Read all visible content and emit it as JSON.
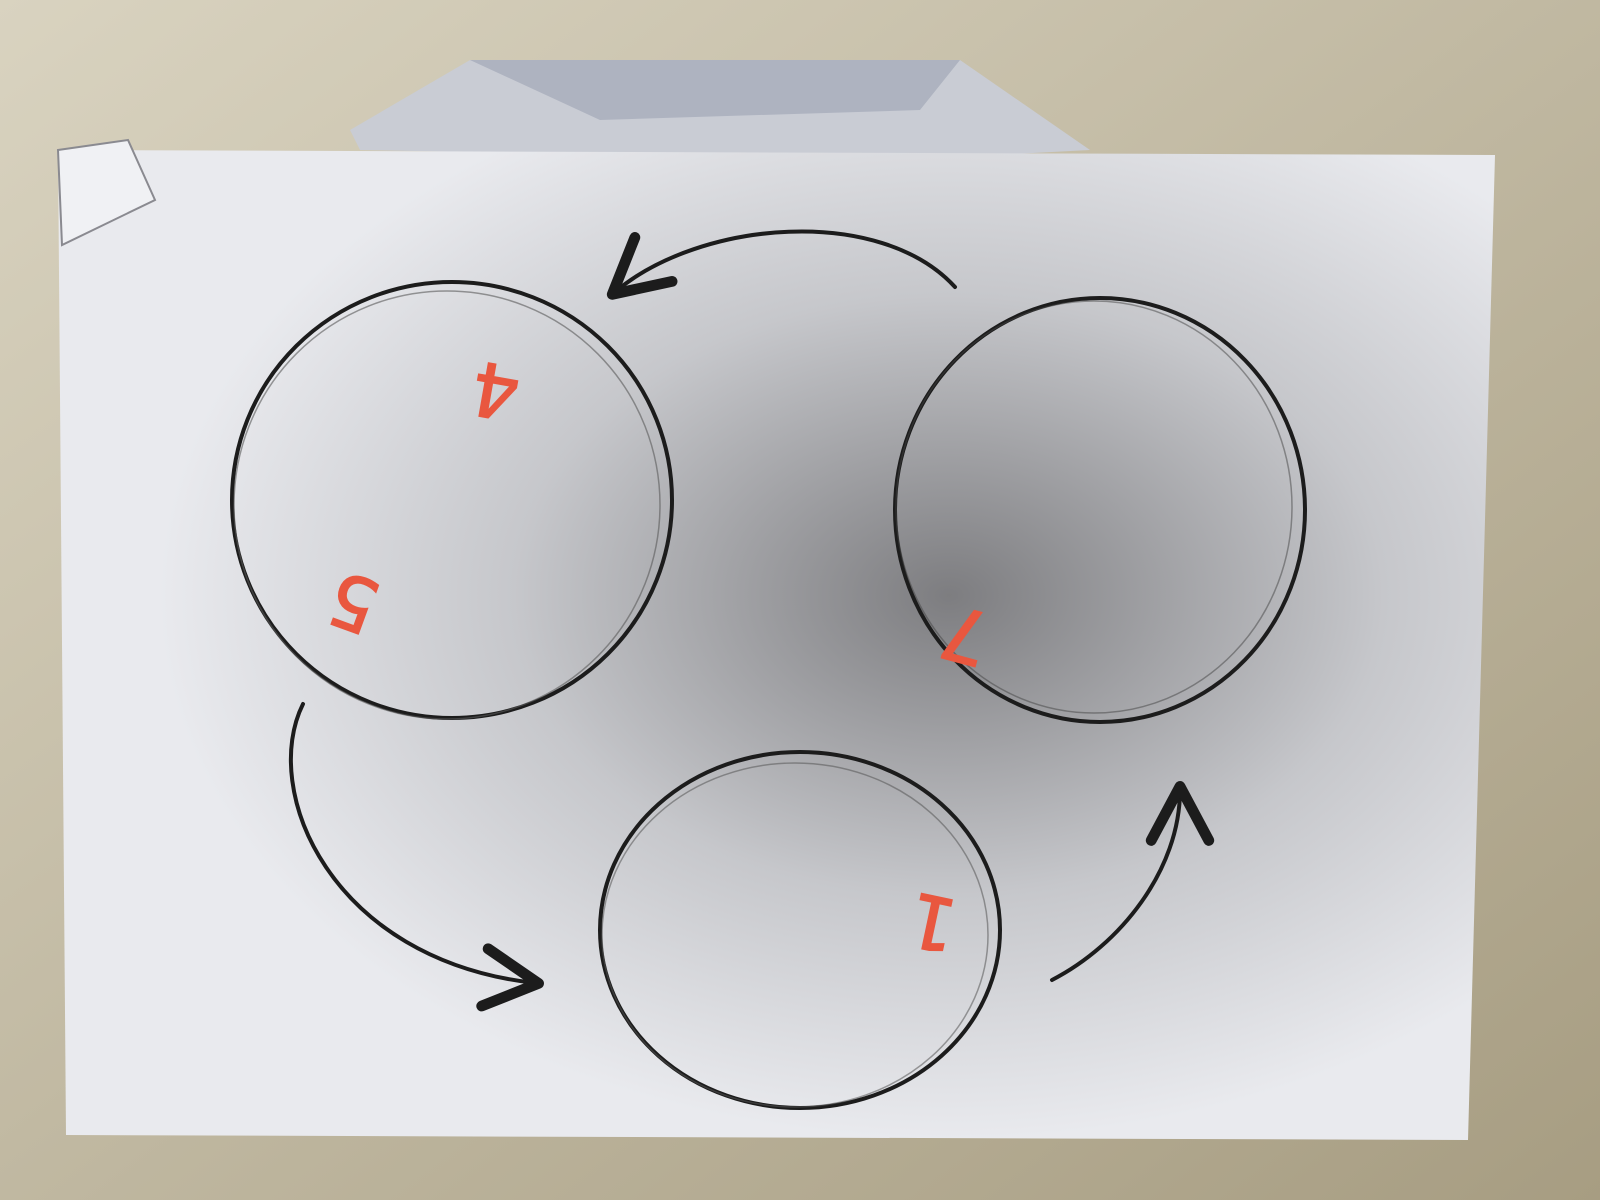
{
  "colors": {
    "desk": "#cfc8b4",
    "paper": "#e6e8ec",
    "paper_shadow": "#b9b9bb",
    "ink": "#1c1c1c",
    "red_marker": "#e9573f"
  },
  "drawing": {
    "circles": [
      {
        "name": "top-left",
        "marks": [
          "4",
          "5"
        ]
      },
      {
        "name": "right",
        "marks": [
          "7"
        ]
      },
      {
        "name": "bottom",
        "marks": [
          "1"
        ]
      }
    ],
    "arrows": [
      {
        "name": "right-to-top-left"
      },
      {
        "name": "top-left-to-bottom"
      },
      {
        "name": "bottom-to-right"
      }
    ]
  }
}
